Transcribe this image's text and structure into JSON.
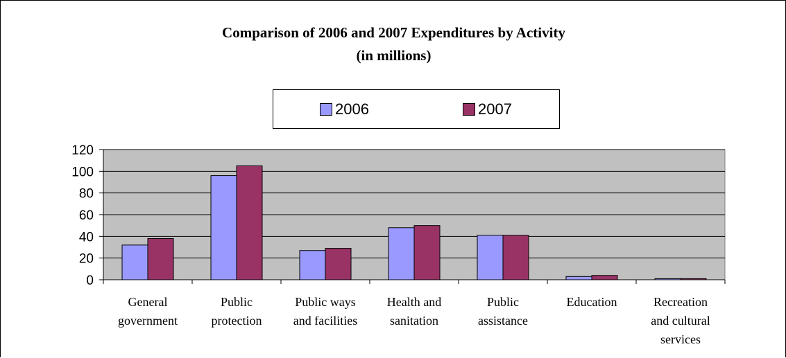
{
  "chart_data": {
    "type": "bar",
    "title": "Comparison of 2006 and 2007 Expenditures by Activity",
    "subtitle": "(in millions)",
    "categories": [
      [
        "General",
        "government"
      ],
      [
        "Public",
        "protection"
      ],
      [
        "Public ways",
        "and facilities"
      ],
      [
        "Health and",
        "sanitation"
      ],
      [
        "Public",
        "assistance"
      ],
      [
        "Education"
      ],
      [
        "Recreation",
        "and cultural",
        "services"
      ]
    ],
    "series": [
      {
        "name": "2006",
        "color": "#9999ff",
        "values": [
          32,
          96,
          27,
          48,
          41,
          3,
          1
        ]
      },
      {
        "name": "2007",
        "color": "#993366",
        "values": [
          38,
          105,
          29,
          50,
          41,
          4,
          1
        ]
      }
    ],
    "y_ticks": [
      "0",
      "20",
      "40",
      "60",
      "80",
      "100",
      "120"
    ],
    "ylim": [
      0,
      120
    ],
    "plot_background": "#c0c0c0",
    "grid": true,
    "legend_position": "top"
  }
}
